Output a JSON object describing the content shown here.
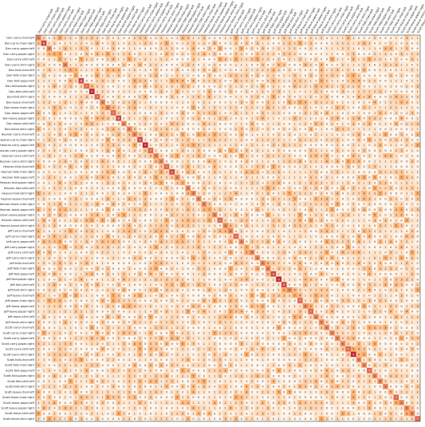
{
  "chart_data": {
    "type": "heatmap",
    "title": "",
    "xlabel": "",
    "ylabel": "",
    "labels": [
      "Dan-carry-chair-left",
      "Dan-carry-chair-right",
      "Dan-carry-paper-left",
      "Dan-carry-paper-right",
      "Dan-carry-shirt-left",
      "Dan-carry-shirt-right",
      "Dan-fold-chair-left",
      "Dan-fold-chair-right",
      "Dan-fold-paper-left",
      "Dan-fold-paper-right",
      "Dan-fold-shirt-left",
      "Dan-fold-shirt-right",
      "Dan-leave-chair-left",
      "Dan-leave-chair-right",
      "Dan-leave-paper-left",
      "Dan-leave-paper-right",
      "Dan-leave-shirt-left",
      "Dan-leave-shirt-right",
      "Heonan-carry-chair-left",
      "Heonan-carry-chair-right",
      "Heonan-carry-paper-left",
      "Heonan-carry-paper-right",
      "Heonan-carry-shirt-left",
      "Heonan-carry-shirt-right",
      "Heonan-fold-chair-left",
      "Heonan-fold-chair-right",
      "Heonan-fold-paper-left",
      "Heonan-fold-paper-right",
      "Heonan-fold-shirt-left",
      "Heonan-fold-shirt-right",
      "Heonan-leave-chair-left",
      "Heonan-leave-chair-right",
      "Heonan-leave-paper-left",
      "Heonan-leave-paper-right",
      "Heonan-leave-shirt-left",
      "Heonan-leave-shirt-right",
      "Jeff-carry-chair-left",
      "Jeff-carry-chair-right",
      "Jeff-carry-paper-left",
      "Jeff-carry-paper-right",
      "Jeff-carry-shirt-left",
      "Jeff-carry-shirt-right",
      "Jeff-fold-chair-left",
      "Jeff-fold-chair-right",
      "Jeff-fold-paper-left",
      "Jeff-fold-paper-right",
      "Jeff-fold-shirt-left",
      "Jeff-fold-shirt-right",
      "Jeff-leave-chair-left",
      "Jeff-leave-chair-right",
      "Jeff-leave-paper-left",
      "Jeff-leave-paper-right",
      "Jeff-leave-shirt-left",
      "Jeff-leave-shirt-right",
      "Scott-carry-chair-left",
      "Scott-carry-chair-right",
      "Scott-carry-paper-left",
      "Scott-carry-paper-right",
      "Scott-carry-shirt-left",
      "Scott-carry-shirt-right",
      "Scott-fold-chair-left",
      "Scott-fold-chair-right",
      "Scott-fold-paper-left",
      "Scott-fold-paper-right",
      "Scott-fold-shirt-left",
      "Scott-fold-shirt-right",
      "Scott-leave-chair-left",
      "Scott-leave-chair-right",
      "Scott-leave-paper-left",
      "Scott-leave-paper-right",
      "Scott-leave-shirt-left",
      "Scott-leave-shirt-right"
    ],
    "diagonal": [
      6,
      8,
      6,
      5,
      5,
      6,
      5,
      5,
      8,
      7,
      9,
      7,
      6,
      6,
      7,
      8,
      6,
      6,
      6,
      8,
      9,
      7,
      6,
      6,
      7,
      8,
      6,
      5,
      6,
      6,
      6,
      6,
      5,
      6,
      7,
      6,
      6,
      7,
      6,
      5,
      6,
      6,
      6,
      6,
      8,
      9,
      8,
      6,
      5,
      7,
      6,
      7,
      6,
      6,
      6,
      6,
      6,
      6,
      7,
      9,
      6,
      6,
      7,
      6,
      6,
      6,
      5,
      7,
      6,
      6,
      6,
      7
    ],
    "values_note": "72x72 confusion counts; off-diagonal cells are mostly 0-4 in the original",
    "color_scale": {
      "min": 0,
      "max": 10,
      "low": "#fff5eb",
      "mid": "#fdae6b",
      "high": "#b10026"
    },
    "grid": false,
    "legend": "none"
  }
}
